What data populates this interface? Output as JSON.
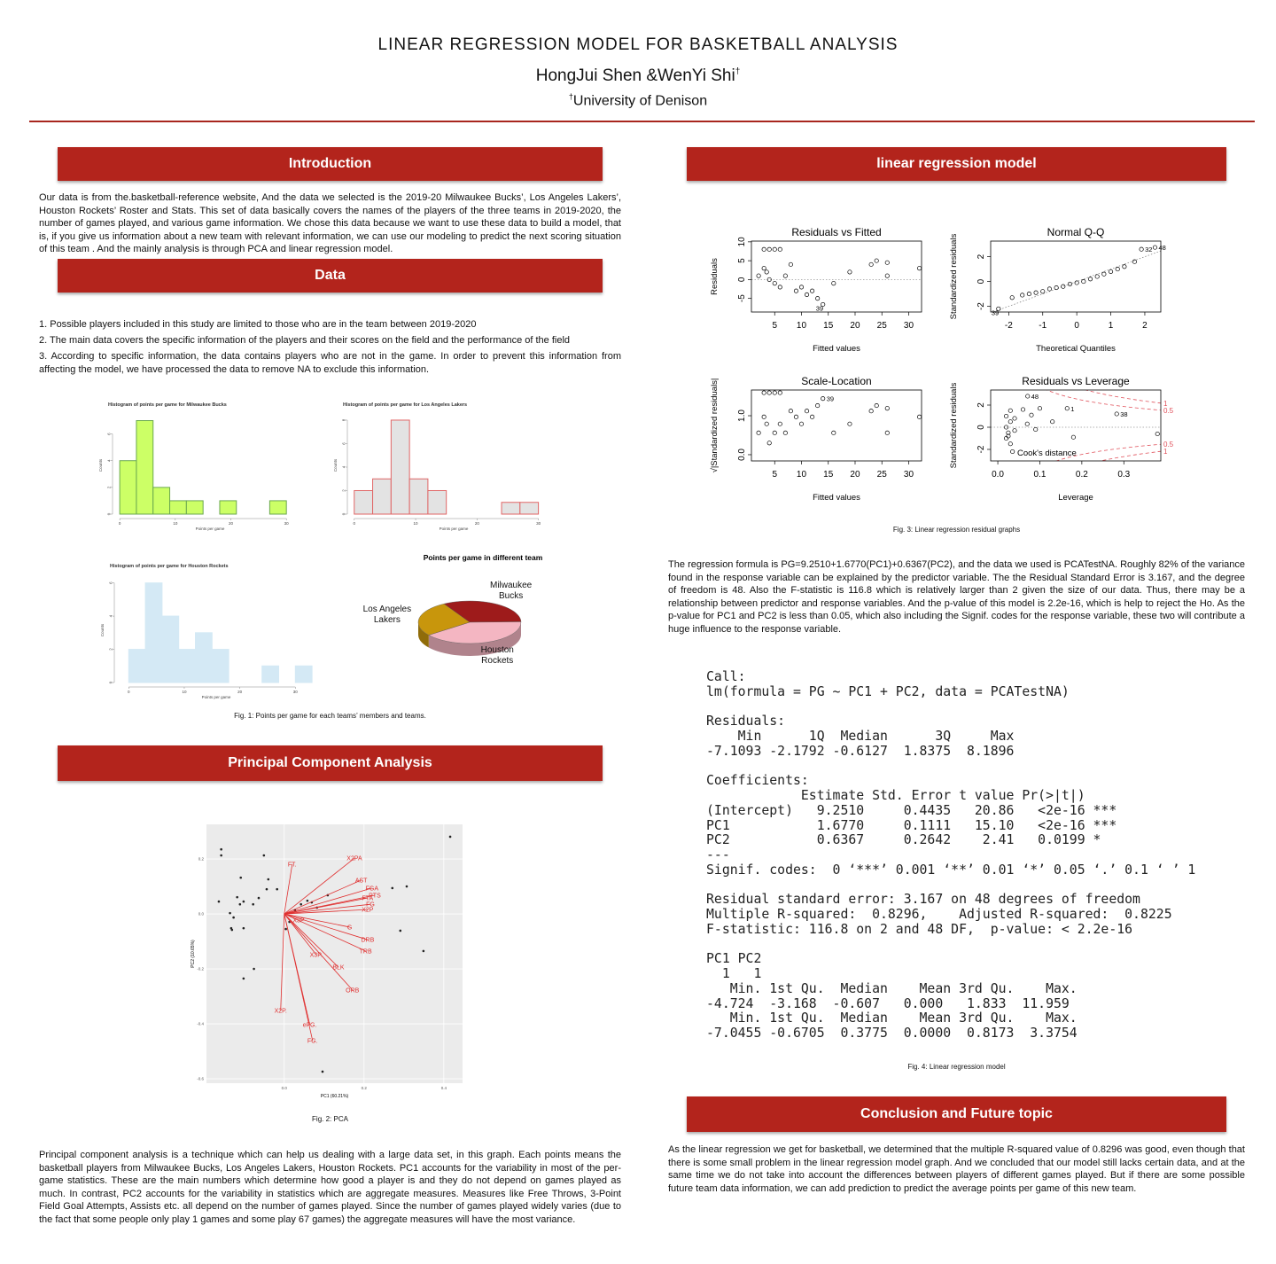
{
  "header": {
    "title": "LINEAR REGRESSION MODEL FOR BASKETBALL ANALYSIS",
    "authors": "HongJui Shen &WenYi Shi",
    "author_mark": "†",
    "affiliation_mark": "†",
    "affiliation": "University of Denison"
  },
  "introduction": {
    "heading": "Introduction",
    "text": "Our data is from the.basketball-reference website, And the data we selected is the 2019-20 Milwaukee Bucks’, Los Angeles Lakers’, Houston Rockets’ Roster and Stats. This set of data basically covers the names of the players of the three teams in 2019-2020, the number of games played, and various game information. We chose this data because we want to use these data to build a model, that is, if you give us information about a new team with relevant information, we can use our modeling to predict the next scoring situation of this team . And the mainly analysis is through PCA and linear regression model."
  },
  "data": {
    "heading": "Data",
    "items": [
      "1. Possible players included in this study are limited to those who are in the team between 2019-2020",
      "2. The main data covers the specific information of the players and their scores on the field and the performance of the field",
      "3. According to specific information, the data contains players who are not in the game. In order to prevent this information from affecting the model, we have processed the data to remove NA to exclude this information."
    ],
    "figures": [
      {
        "type": "histogram",
        "title": "Histogram of points per game for Milwaukee Bucks",
        "x_label": "Points per game",
        "y_label": "Counts",
        "bins": [
          0,
          3,
          6,
          9,
          12,
          15,
          18,
          21,
          24,
          27,
          30
        ],
        "counts": [
          4,
          7,
          2,
          1,
          1,
          0,
          1,
          0,
          0,
          1
        ],
        "xlim": [
          -0.5,
          33
        ],
        "xticks": [
          0,
          10,
          20,
          30
        ],
        "ylim": [
          0,
          7.3
        ],
        "yticks": [
          0,
          2,
          4,
          6
        ],
        "color": "#ccff66",
        "edge_color": "#6aa84f"
      },
      {
        "type": "histogram",
        "title": "Histogram of points per game for Los Angeles Lakers",
        "x_label": "Points per game",
        "y_label": "Counts",
        "bins": [
          0,
          3,
          6,
          9,
          12,
          15,
          18,
          21,
          24,
          27,
          30
        ],
        "counts": [
          2,
          3,
          8,
          3,
          2,
          0,
          0,
          0,
          1,
          1
        ],
        "xlim": [
          -0.4,
          32.8
        ],
        "xticks": [
          0,
          10,
          20,
          30
        ],
        "ylim": [
          0,
          8.3
        ],
        "yticks": [
          0,
          2,
          4,
          6,
          8
        ],
        "color": "#e3e3e3",
        "edge_color": "#e06666"
      },
      {
        "type": "histogram",
        "title": "Histogram of points per game for Houston Rockets",
        "x_label": "Points per game",
        "y_label": "Counts",
        "bins": [
          0,
          3,
          6,
          9,
          12,
          15,
          18,
          21,
          24,
          27,
          30,
          33
        ],
        "counts": [
          2,
          6,
          4,
          2,
          3,
          2,
          0,
          0,
          1,
          0,
          1
        ],
        "xlim": [
          -1.8,
          33.3
        ],
        "xticks": [
          0,
          10,
          20,
          30
        ],
        "ylim": [
          0,
          6.3
        ],
        "yticks": [
          0,
          2,
          4,
          6
        ],
        "color": "#d4e9f5",
        "edge_color": "#d4e9f5"
      },
      {
        "type": "pie",
        "title": "Points per game in different team",
        "categories": [
          "Milwaukee Bucks",
          "Houston Rockets",
          "Los Angeles Lakers"
        ],
        "values": [
          33,
          40,
          27
        ],
        "colors": [
          "#9e1b1b",
          "#f4b6c2",
          "#c8960c"
        ]
      }
    ],
    "caption": "Fig. 1: Points per game for each teams’ members and teams."
  },
  "pca": {
    "heading": "Principal Component Analysis",
    "figure": {
      "type": "biplot",
      "x_label": "PC1 (60.21%)",
      "y_label": "PC2 (10.65%)",
      "xlim": [
        -0.195,
        0.447
      ],
      "ylim": [
        -0.616,
        0.326
      ],
      "xticks": [
        {
          "value": 0,
          "label": "0.0"
        },
        0.2,
        0.4
      ],
      "yticks": [
        0.2,
        {
          "value": 0,
          "label": "0.0"
        },
        -0.2,
        -0.4,
        -0.6
      ],
      "x": [
        0.416,
        -0.158,
        -0.158,
        -0.051,
        -0.109,
        -0.018,
        -0.044,
        -0.04,
        -0.118,
        -0.102,
        -0.111,
        -0.164,
        -0.078,
        -0.064,
        -0.136,
        -0.127,
        -0.133,
        -0.131,
        -0.102,
        0.004,
        0.013,
        0.027,
        0.042,
        0.058,
        0.069,
        0.082,
        0.109,
        0.271,
        0.307,
        0.291,
        0.349,
        -0.076,
        -0.102,
        0.096
      ],
      "y": [
        0.281,
        0.235,
        0.213,
        0.213,
        0.132,
        0.09,
        0.09,
        0.126,
        0.061,
        0.045,
        0.035,
        0.045,
        0.035,
        0.058,
        0.003,
        -0.013,
        -0.052,
        -0.058,
        -0.052,
        -0.055,
        -0.029,
        0.013,
        0.035,
        0.048,
        0.042,
        0.023,
        0.068,
        0.094,
        0.1,
        -0.061,
        -0.135,
        -0.2,
        -0.235,
        -0.574
      ],
      "loadings": [
        {
          "name": "FT.",
          "x": 0.02,
          "y": 0.181
        },
        {
          "name": "X2PA",
          "x": 0.176,
          "y": 0.203
        },
        {
          "name": "AST",
          "x": 0.193,
          "y": 0.123
        },
        {
          "name": "FGA",
          "x": 0.22,
          "y": 0.094
        },
        {
          "name": "PTS",
          "x": 0.227,
          "y": 0.068
        },
        {
          "name": "FTA",
          "x": 0.209,
          "y": 0.058
        },
        {
          "name": "FG",
          "x": 0.216,
          "y": 0.035
        },
        {
          "name": "X2P",
          "x": 0.209,
          "y": 0.016
        },
        {
          "name": "X3P",
          "x": 0.036,
          "y": -0.023
        },
        {
          "name": "G",
          "x": 0.164,
          "y": -0.048
        },
        {
          "name": "DRB",
          "x": 0.209,
          "y": -0.094
        },
        {
          "name": "TRB",
          "x": 0.204,
          "y": -0.135
        },
        {
          "name": "X3P.",
          "x": 0.08,
          "y": -0.148
        },
        {
          "name": "BLK",
          "x": 0.136,
          "y": -0.194
        },
        {
          "name": "ORB",
          "x": 0.171,
          "y": -0.277
        },
        {
          "name": "X2P.",
          "x": -0.009,
          "y": -0.352
        },
        {
          "name": "eFG.",
          "x": 0.064,
          "y": -0.403
        },
        {
          "name": "FG.",
          "x": 0.071,
          "y": -0.461
        }
      ]
    },
    "caption": "Fig. 2: PCA",
    "text": "Principal component analysis is a technique which can help us dealing with a large data set, in this graph. Each points means the basketball players from Milwaukee Bucks, Los Angeles Lakers, Houston Rockets. PC1 accounts for the variability in most of the per-game statistics. These are the main numbers which determine how good a player is and they do not depend on games played as much. In contrast, PC2 accounts for the variability in statistics which are aggregate measures. Measures like Free Throws, 3-Point Field Goal Attempts, Assists etc. all depend on the number of games played. Since the number of games played widely varies (due to the fact that some people only play 1 games and some play 67 games) the aggregate measures will have the most variance."
  },
  "regression": {
    "heading": "linear regression model",
    "figures": [
      {
        "type": "scatter",
        "title": "Residuals vs Fitted",
        "x_label": "Fitted values",
        "y_label": "Residuals",
        "reference": "zero",
        "xlim": [
          0.66,
          32.4
        ],
        "ylim": [
          -8.6,
          10.2
        ],
        "xticks": [
          5,
          10,
          15,
          20,
          25,
          30
        ],
        "yticks": [
          -5,
          0,
          5,
          10
        ],
        "x": [
          2,
          3,
          4,
          5,
          6,
          3,
          3.5,
          4,
          5,
          6,
          7,
          8,
          9,
          10,
          11,
          12,
          13,
          14,
          16,
          19,
          23,
          24,
          26,
          26,
          32
        ],
        "y": [
          1,
          8,
          8,
          8,
          8,
          3,
          2,
          0,
          -1,
          -2,
          1,
          4,
          -3,
          -2,
          -4,
          -3,
          -5,
          -6.6,
          -1,
          2,
          4,
          5,
          1,
          4.5,
          3
        ],
        "point_labels": [
          null,
          null,
          null,
          null,
          null,
          null,
          null,
          null,
          null,
          null,
          null,
          null,
          null,
          null,
          null,
          null,
          null,
          "39",
          null,
          null,
          null,
          null,
          null,
          null,
          null
        ]
      },
      {
        "type": "scatter",
        "title": "Normal Q-Q",
        "x_label": "Theoretical Quantiles",
        "y_label": "Standardized residuals",
        "reference": "identity",
        "xlim": [
          -2.53,
          2.47
        ],
        "ylim": [
          -2.46,
          3.26
        ],
        "xticks": [
          -2,
          -1,
          0,
          1,
          2
        ],
        "yticks": [
          -2,
          0,
          2
        ],
        "x": [
          -2.3,
          -1.9,
          -1.6,
          -1.4,
          -1.2,
          -1.0,
          -0.8,
          -0.6,
          -0.4,
          -0.2,
          0,
          0.2,
          0.4,
          0.6,
          0.8,
          1.0,
          1.2,
          1.4,
          1.7,
          1.9,
          2.3
        ],
        "y": [
          -2.2,
          -1.3,
          -1.1,
          -1.0,
          -0.9,
          -0.8,
          -0.6,
          -0.5,
          -0.4,
          -0.2,
          -0.1,
          0,
          0.2,
          0.4,
          0.6,
          0.8,
          1.0,
          1.2,
          1.6,
          2.6,
          2.75
        ],
        "point_labels": [
          "39",
          null,
          null,
          null,
          null,
          null,
          null,
          null,
          null,
          null,
          null,
          null,
          null,
          null,
          null,
          null,
          null,
          null,
          null,
          "32",
          "48"
        ]
      },
      {
        "type": "scatter",
        "title": "Scale-Location",
        "x_label": "Fitted values",
        "y_label": "√|Standardized residuals|",
        "xlim": [
          0.66,
          32.4
        ],
        "ylim": [
          -0.16,
          1.66
        ],
        "xticks": [
          5,
          10,
          15,
          20,
          25,
          30
        ],
        "yticks": [
          {
            "value": 0,
            "label": "0.0"
          },
          {
            "value": 1,
            "label": "1.0"
          }
        ],
        "x": [
          2,
          3,
          4,
          5,
          6,
          3,
          3.5,
          4,
          5,
          6,
          7,
          8,
          9,
          10,
          11,
          12,
          13,
          14,
          16,
          19,
          23,
          24,
          26,
          26,
          32
        ],
        "y": [
          0.56,
          1.59,
          1.59,
          1.59,
          1.59,
          0.97,
          0.79,
          0.3,
          0.56,
          0.79,
          0.56,
          1.12,
          0.97,
          0.79,
          1.12,
          0.97,
          1.26,
          1.44,
          0.56,
          0.79,
          1.12,
          1.26,
          0.56,
          1.19,
          0.97
        ],
        "point_labels": [
          null,
          null,
          null,
          null,
          null,
          null,
          null,
          null,
          null,
          null,
          null,
          null,
          null,
          null,
          null,
          null,
          null,
          "39",
          null,
          null,
          null,
          null,
          null,
          null,
          null
        ]
      },
      {
        "type": "scatter",
        "title": "Residuals vs Leverage",
        "x_label": "Leverage",
        "y_label": "Standardized residuals",
        "reference": "zero",
        "annotation": "Cook's distance",
        "cook_levels": [
          0.5,
          1
        ],
        "xlim": [
          -0.017,
          0.388
        ],
        "ylim": [
          -3.04,
          3.36
        ],
        "xticks": [
          {
            "value": 0,
            "label": "0.0"
          },
          0.1,
          0.2,
          0.3
        ],
        "yticks": [
          -2,
          0,
          2
        ],
        "x": [
          0.02,
          0.02,
          0.025,
          0.03,
          0.03,
          0.02,
          0.03,
          0.04,
          0.04,
          0.071,
          0.06,
          0.07,
          0.08,
          0.09,
          0.1,
          0.13,
          0.165,
          0.18,
          0.283,
          0.38,
          0.035,
          0.025
        ],
        "y": [
          0,
          -1,
          -0.5,
          0.5,
          -1.5,
          1.0,
          1.5,
          0.8,
          -0.3,
          2.8,
          1.6,
          0.3,
          1.1,
          -0.2,
          1.7,
          0.5,
          1.7,
          -0.9,
          1.2,
          -0.6,
          -2.2,
          -0.8
        ],
        "point_labels": [
          null,
          null,
          null,
          null,
          null,
          null,
          null,
          null,
          null,
          "48",
          null,
          null,
          null,
          null,
          null,
          null,
          "1",
          null,
          "38",
          null,
          null,
          null
        ]
      }
    ],
    "caption": "Fig. 3: Linear regression residual graphs",
    "text": "The regression formula is PG=9.2510+1.6770(PC1)+0.6367(PC2), and the data we used is PCATestNA. Roughly 82% of the variance found in the response variable can be explained by the predictor variable. The the Residual Standard Error is 3.167, and the degree of freedom is 48. Also the F-statistic is 116.8 which is relatively larger than 2 given the size of our data. Thus, there may be a relationship between predictor and response variables. And the p-value of this model is 2.2e-16, which is help to reject the Ho. As the p-value for PC1 and PC2 is less than 0.05, which also including the Signif. codes for the response variable, these two will contribute a huge influence to the response variable.",
    "output": {
      "blocks": [
        [
          "Call:",
          "lm(formula = PG ~ PC1 + PC2, data = PCATestNA)"
        ],
        [
          "Residuals:",
          "    Min      1Q  Median      3Q     Max",
          "-7.1093 -2.1792 -0.6127  1.8375  8.1896"
        ],
        [
          "Coefficients:",
          "            Estimate Std. Error t value Pr(>|t|)",
          "(Intercept)   9.2510     0.4435   20.86   <2e-16 ***",
          "PC1           1.6770     0.1111   15.10   <2e-16 ***",
          "PC2           0.6367     0.2642    2.41   0.0199 *",
          "---",
          "Signif. codes:  0 ‘***’ 0.001 ‘**’ 0.01 ‘*’ 0.05 ‘.’ 0.1 ‘ ’ 1"
        ],
        [
          "Residual standard error: 3.167 on 48 degrees of freedom",
          "Multiple R-squared:  0.8296,    Adjusted R-squared:  0.8225",
          "F-statistic: 116.8 on 2 and 48 DF,  p-value: < 2.2e-16"
        ],
        [
          "PC1 PC2",
          "  1   1",
          "   Min. 1st Qu.  Median    Mean 3rd Qu.    Max.",
          "-4.724  -3.168  -0.607   0.000   1.833  11.959",
          "   Min. 1st Qu.  Median    Mean 3rd Qu.    Max.",
          "-7.0455 -0.6705  0.3775  0.0000  0.8173  3.3754"
        ]
      ]
    },
    "output_caption": "Fig. 4: Linear regression model"
  },
  "conclusion": {
    "heading": "Conclusion and Future topic",
    "text": "As the linear regression we get for basketball, we determined that the multiple R-squared value of 0.8296 was good, even though that there is some small problem in the linear regression model graph. And we concluded that our model still lacks certain data, and at the same time we do not take into account the differences between players of different games played. But if there are some possible future team data information, we can add prediction to predict the average points per game of this new team."
  }
}
